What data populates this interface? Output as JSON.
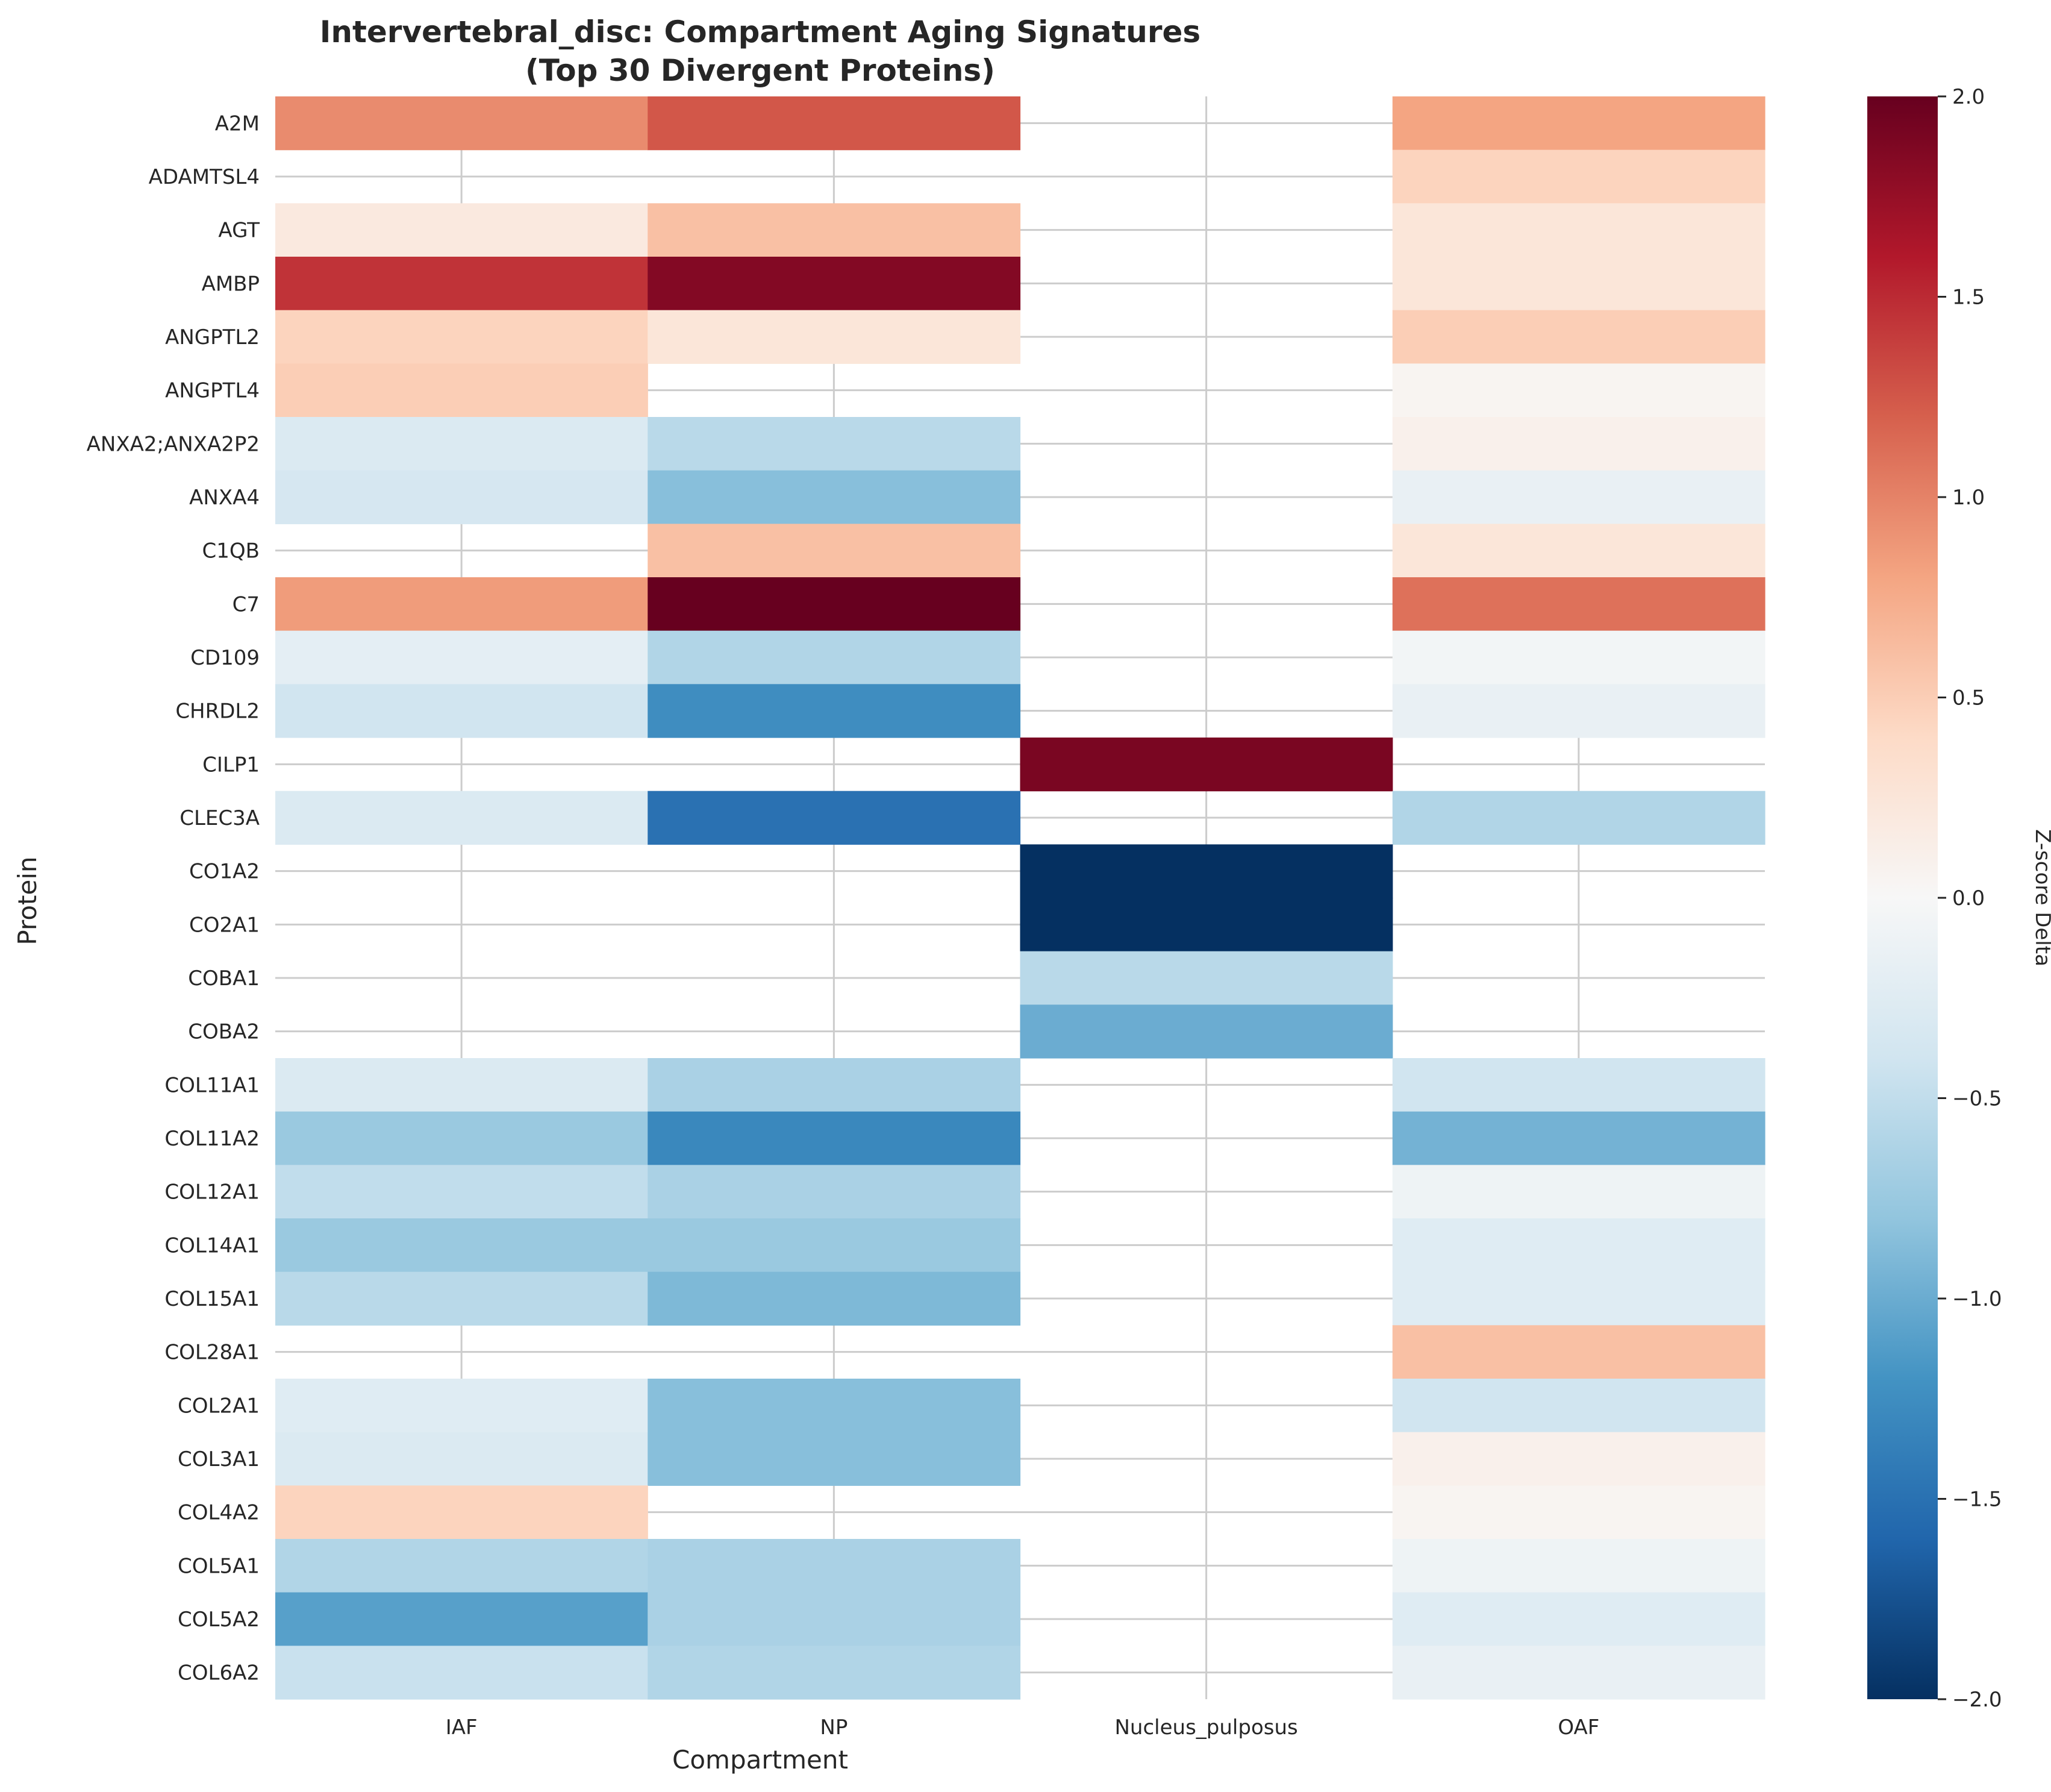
{
  "chart_data": {
    "type": "heatmap",
    "title": "Intervertebral_disc: Compartment Aging Signatures\n(Top 30 Divergent Proteins)",
    "xlabel": "Compartment",
    "ylabel": "Protein",
    "x_categories": [
      "IAF",
      "NP",
      "Nucleus_pulposus",
      "OAF"
    ],
    "y_categories": [
      "A2M",
      "ADAMTSL4",
      "AGT",
      "AMBP",
      "ANGPTL2",
      "ANGPTL4",
      "ANXA2;ANXA2P2",
      "ANXA4",
      "C1QB",
      "C7",
      "CD109",
      "CHRDL2",
      "CILP1",
      "CLEC3A",
      "CO1A2",
      "CO2A1",
      "COBA1",
      "COBA2",
      "COL11A1",
      "COL11A2",
      "COL12A1",
      "COL14A1",
      "COL15A1",
      "COL28A1",
      "COL2A1",
      "COL3A1",
      "COL4A2",
      "COL5A1",
      "COL5A2",
      "COL6A2"
    ],
    "values": [
      [
        0.95,
        1.25,
        null,
        0.8
      ],
      [
        null,
        null,
        null,
        0.45
      ],
      [
        0.2,
        0.6,
        null,
        0.25
      ],
      [
        1.45,
        1.85,
        null,
        0.25
      ],
      [
        0.45,
        0.25,
        null,
        0.5
      ],
      [
        0.5,
        null,
        null,
        0.05
      ],
      [
        -0.3,
        -0.55,
        null,
        0.1
      ],
      [
        -0.35,
        -0.85,
        null,
        -0.15
      ],
      [
        null,
        0.6,
        null,
        0.25
      ],
      [
        0.85,
        2.0,
        null,
        1.1
      ],
      [
        -0.2,
        -0.6,
        null,
        -0.05
      ],
      [
        -0.4,
        -1.25,
        null,
        -0.15
      ],
      [
        null,
        null,
        1.9,
        null
      ],
      [
        -0.3,
        -1.5,
        null,
        -0.6
      ],
      [
        null,
        null,
        -2.0,
        null
      ],
      [
        null,
        null,
        -2.0,
        null
      ],
      [
        null,
        null,
        -0.55,
        null
      ],
      [
        null,
        null,
        -1.0,
        null
      ],
      [
        -0.3,
        -0.65,
        null,
        -0.4
      ],
      [
        -0.75,
        -1.3,
        null,
        -0.95
      ],
      [
        -0.5,
        -0.65,
        null,
        -0.1
      ],
      [
        -0.75,
        -0.75,
        null,
        -0.25
      ],
      [
        -0.55,
        -0.9,
        null,
        -0.25
      ],
      [
        null,
        null,
        null,
        0.6
      ],
      [
        -0.25,
        -0.85,
        null,
        -0.4
      ],
      [
        -0.3,
        -0.85,
        null,
        0.1
      ],
      [
        0.45,
        null,
        null,
        0.05
      ],
      [
        -0.6,
        -0.65,
        null,
        -0.1
      ],
      [
        -1.1,
        -0.65,
        null,
        -0.25
      ],
      [
        -0.45,
        -0.6,
        null,
        -0.15
      ]
    ],
    "colorbar": {
      "label": "Z-score Delta",
      "min": -2.0,
      "max": 2.0,
      "ticks": [
        "−2.0",
        "−1.5",
        "−1.0",
        "−0.5",
        "0.0",
        "0.5",
        "1.0",
        "1.5",
        "2.0"
      ],
      "tick_values": [
        -2.0,
        -1.5,
        -1.0,
        -0.5,
        0.0,
        0.5,
        1.0,
        1.5,
        2.0
      ],
      "colormap": "RdBu_r"
    },
    "grid": true,
    "colors": {
      "low": "#053061",
      "mid": "#f7f7f7",
      "high": "#67001f",
      "grid": "#cccccc"
    }
  }
}
